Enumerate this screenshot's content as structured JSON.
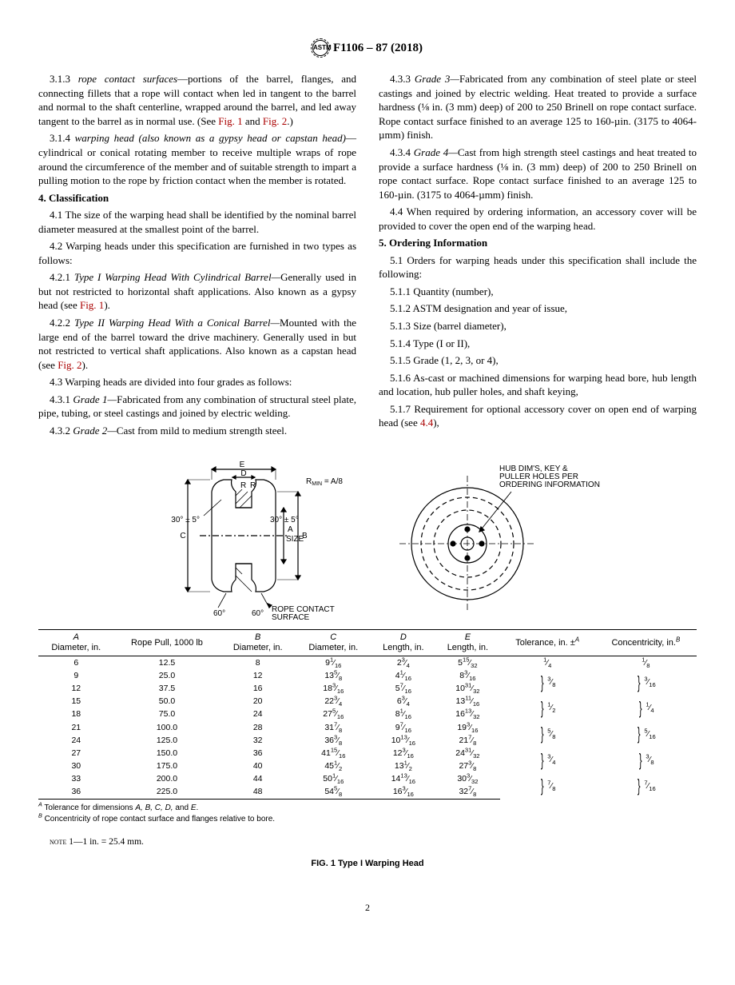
{
  "header": {
    "designation": "F1106 – 87 (2018)",
    "logo_text": "ASTM"
  },
  "paragraphs": {
    "p313_num": "3.1.3 ",
    "p313_term": "rope contact surfaces",
    "p313_text": "—portions of the barrel, flanges, and connecting fillets that a rope will contact when led in tangent to the barrel and normal to the shaft centerline, wrapped around the barrel, and led away tangent to the barrel as in normal use. (See ",
    "p313_fig1": "Fig. 1",
    "p313_and": " and ",
    "p313_fig2": "Fig. 2",
    "p313_end": ".)",
    "p314_num": "3.1.4 ",
    "p314_term": "warping head (also known as a gypsy head or capstan head)",
    "p314_text": "—cylindrical or conical rotating member to receive multiple wraps of rope around the circumference of the member and of suitable strength to impart a pulling motion to the rope by friction contact when the member is rotated.",
    "s4_head": "4. Classification",
    "p41": "4.1 The size of the warping head shall be identified by the nominal barrel diameter measured at the smallest point of the barrel.",
    "p42": "4.2 Warping heads under this specification are furnished in two types as follows:",
    "p421_num": "4.2.1 ",
    "p421_term": "Type I Warping Head With Cylindrical Barrel—",
    "p421_text": "Generally used in but not restricted to horizontal shaft applications. Also known as a gypsy head (see ",
    "p421_fig": "Fig. 1",
    "p421_end": ").",
    "p422_num": "4.2.2 ",
    "p422_term": "Type II Warping Head With a Conical Barrel—",
    "p422_text": "Mounted with the large end of the barrel toward the drive machinery. Generally used in but not restricted to vertical shaft applications. Also known as a capstan head (see ",
    "p422_fig": "Fig. 2",
    "p422_end": ").",
    "p43": "4.3 Warping heads are divided into four grades as follows:",
    "p431_num": "4.3.1 ",
    "p431_term": "Grade 1—",
    "p431_text": "Fabricated from any combination of structural steel plate, pipe, tubing, or steel castings and joined by electric welding.",
    "p432_num": "4.3.2 ",
    "p432_term": "Grade 2—",
    "p432_text": "Cast from mild to medium strength steel.",
    "p433_num": "4.3.3 ",
    "p433_term": "Grade 3—",
    "p433_text": "Fabricated from any combination of steel plate or steel castings and joined by electric welding. Heat treated to provide a surface hardness (⅛ in. (3 mm) deep) of 200 to 250 Brinell on rope contact surface. Rope contact surface finished to an average 125 to 160-µin. (3175 to 4064-µmm) finish.",
    "p434_num": "4.3.4 ",
    "p434_term": "Grade 4—",
    "p434_text": "Cast from high strength steel castings and heat treated to provide a surface hardness (⅛ in. (3 mm) deep) of 200 to 250 Brinell on rope contact surface. Rope contact surface finished to an average 125 to 160-µin. (3175 to 4064-µmm) finish.",
    "p44": "4.4 When required by ordering information, an accessory cover will be provided to cover the open end of the warping head.",
    "s5_head": "5. Ordering Information",
    "p51": "5.1 Orders for warping heads under this specification shall include the following:",
    "p511": "5.1.1 Quantity (number),",
    "p512": "5.1.2 ASTM designation and year of issue,",
    "p513": "5.1.3 Size (barrel diameter),",
    "p514": "5.1.4 Type (I or II),",
    "p515": "5.1.5 Grade (1, 2, 3, or 4),",
    "p516": "5.1.6 As-cast or machined dimensions for warping head bore, hub length and location, hub puller holes, and shaft keying,",
    "p517a": "5.1.7 Requirement for optional accessory cover on open end of warping head (see ",
    "p517_ref": "4.4",
    "p517b": "),"
  },
  "diagram": {
    "rmin": "R",
    "rmin_sub": "MIN",
    "rmin_eq": " = A/8",
    "hub_label": "HUB DIM'S, KEY & PULLER HOLES PER ORDERING INFORMATION",
    "angle": "30° ± 5°",
    "size_label": "SIZE",
    "sixty": "60°",
    "rope_label": "ROPE CONTACT SURFACE",
    "dims": {
      "A": "A",
      "B": "B",
      "C": "C",
      "D": "D",
      "E": "E",
      "R": "R"
    }
  },
  "table": {
    "headers": {
      "A1": "A",
      "A2": "Diameter, in.",
      "RP": "Rope Pull, 1000 lb",
      "B1": "B",
      "B2": "Diameter, in.",
      "C1": "C",
      "C2": "Diameter, in.",
      "D1": "D",
      "D2": "Length, in.",
      "E1": "E",
      "E2": "Length, in.",
      "Tol": "Tolerance, in. ±",
      "TolSup": "A",
      "Con": "Concentricity, in.",
      "ConSup": "B"
    },
    "rows": [
      {
        "A": "6",
        "RP": "12.5",
        "B": "8",
        "C": "9 1/16",
        "D": "2 3/4",
        "E": "5 15/32",
        "Tol": "1/4",
        "Con": "1/8",
        "span": 1
      },
      {
        "A": "9",
        "RP": "25.0",
        "B": "12",
        "C": "13 5/8",
        "D": "4 1/16",
        "E": "8 3/16",
        "Tol": "3/8",
        "Con": "3/16",
        "span": 2
      },
      {
        "A": "12",
        "RP": "37.5",
        "B": "16",
        "C": "18 3/16",
        "D": "5 7/16",
        "E": "10 31/32"
      },
      {
        "A": "15",
        "RP": "50.0",
        "B": "20",
        "C": "22 3/4",
        "D": "6 3/4",
        "E": "13 11/16",
        "Tol": "1/2",
        "Con": "1/4",
        "span": 2
      },
      {
        "A": "18",
        "RP": "75.0",
        "B": "24",
        "C": "27 5/16",
        "D": "8 1/16",
        "E": "16 13/32"
      },
      {
        "A": "21",
        "RP": "100.0",
        "B": "28",
        "C": "31 7/8",
        "D": "9 7/16",
        "E": "19 3/16",
        "Tol": "5/8",
        "Con": "5/16",
        "span": 2
      },
      {
        "A": "24",
        "RP": "125.0",
        "B": "32",
        "C": "36 3/8",
        "D": "10 13/16",
        "E": "21 7/8"
      },
      {
        "A": "27",
        "RP": "150.0",
        "B": "36",
        "C": "41 15/16",
        "D": "12 3/16",
        "E": "24 31/32",
        "Tol": "3/4",
        "Con": "3/8",
        "span": 2
      },
      {
        "A": "30",
        "RP": "175.0",
        "B": "40",
        "C": "45 1/2",
        "D": "13 1/2",
        "E": "27 3/8"
      },
      {
        "A": "33",
        "RP": "200.0",
        "B": "44",
        "C": "50 1/16",
        "D": "14 13/16",
        "E": "30 3/32",
        "Tol": "7/8",
        "Con": "7/16",
        "span": 2
      },
      {
        "A": "36",
        "RP": "225.0",
        "B": "48",
        "C": "54 5/8",
        "D": "16 3/16",
        "E": "32 7/8"
      }
    ]
  },
  "footnotes": {
    "A_sup": "A",
    "A": " Tolerance for dimensions ",
    "A_dims": "A, B, C, D, ",
    "A_and": "and ",
    "A_E": "E",
    "A_end": ".",
    "B_sup": "B",
    "B": " Concentricity of rope contact surface and flanges relative to bore."
  },
  "note": {
    "label": "Note",
    "text": " 1—1 in. = 25.4 mm."
  },
  "fig_caption": "FIG. 1 Type I Warping Head",
  "page_no": "2"
}
